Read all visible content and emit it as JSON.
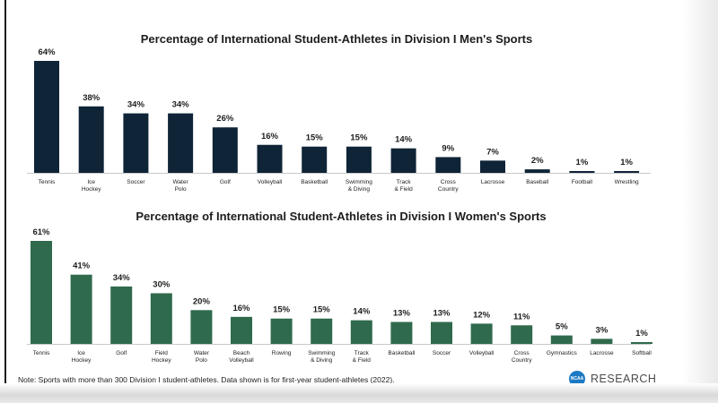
{
  "colors": {
    "men": "#0f2437",
    "women": "#2f6a4c",
    "logo": "#1c7ac4"
  },
  "chart_data": [
    {
      "type": "bar",
      "title": "Percentage of International Student-Athletes in Division I Men's Sports",
      "categories": [
        "Tennis",
        "Ice Hockey",
        "Soccer",
        "Water Polo",
        "Golf",
        "Volleyball",
        "Basketball",
        "Swimming & Diving",
        "Track & Field",
        "Cross Country",
        "Lacrosse",
        "Baseball",
        "Football",
        "Wrestling"
      ],
      "values": [
        64,
        38,
        34,
        34,
        26,
        16,
        15,
        15,
        14,
        9,
        7,
        2,
        1,
        1
      ],
      "value_labels": [
        "64%",
        "38%",
        "34%",
        "34%",
        "26%",
        "16%",
        "15%",
        "15%",
        "14%",
        "9%",
        "7%",
        "2%",
        "1%",
        "1%"
      ],
      "ylim": [
        0,
        64
      ],
      "grid": false,
      "axis_labels_visible": false
    },
    {
      "type": "bar",
      "title": "Percentage of International Student-Athletes in Division I Women's Sports",
      "categories": [
        "Tennis",
        "Ice Hockey",
        "Golf",
        "Field Hockey",
        "Water Polo",
        "Beach Volleyball",
        "Rowing",
        "Swimming & Diving",
        "Track & Field",
        "Basketball",
        "Soccer",
        "Volleyball",
        "Cross Country",
        "Gymnastics",
        "Lacrosse",
        "Softball"
      ],
      "values": [
        61,
        41,
        34,
        30,
        20,
        16,
        15,
        15,
        14,
        13,
        13,
        12,
        11,
        5,
        3,
        1
      ],
      "value_labels": [
        "61%",
        "41%",
        "34%",
        "30%",
        "20%",
        "16%",
        "15%",
        "15%",
        "14%",
        "13%",
        "13%",
        "12%",
        "11%",
        "5%",
        "3%",
        "1%"
      ],
      "ylim": [
        0,
        61
      ],
      "grid": false,
      "axis_labels_visible": false
    }
  ],
  "footer": {
    "note": "Note: Sports with more than 300 Division I student-athletes. Data shown is for first-year student-athletes (2022).",
    "logo_badge": "NCAA",
    "logo_text": "RESEARCH"
  }
}
